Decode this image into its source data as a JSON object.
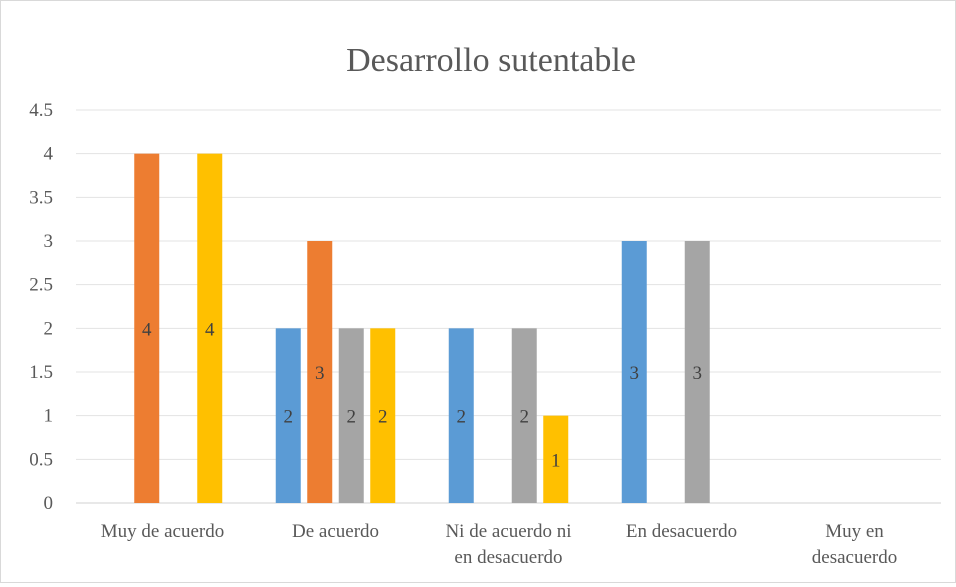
{
  "chart_data": {
    "type": "bar",
    "title": "Desarrollo sutentable",
    "categories": [
      [
        "Muy de acuerdo"
      ],
      [
        "De acuerdo"
      ],
      [
        "Ni de acuerdo ni",
        "en desacuerdo"
      ],
      [
        "En desacuerdo"
      ],
      [
        "Muy en",
        "desacuerdo"
      ]
    ],
    "series": [
      {
        "color": "#5B9BD5",
        "values": [
          null,
          2,
          2,
          3,
          null
        ]
      },
      {
        "color": "#ED7D31",
        "values": [
          4,
          3,
          null,
          null,
          null
        ]
      },
      {
        "color": "#A5A5A5",
        "values": [
          null,
          2,
          2,
          3,
          null
        ]
      },
      {
        "color": "#FFC000",
        "values": [
          4,
          2,
          1,
          null,
          null
        ]
      }
    ],
    "ylim": [
      0,
      4.5
    ],
    "yticks": [
      "0",
      "0.5",
      "1",
      "1.5",
      "2",
      "2.5",
      "3",
      "3.5",
      "4",
      "4.5"
    ],
    "grid": true,
    "data_labels": true,
    "legend": "none"
  }
}
